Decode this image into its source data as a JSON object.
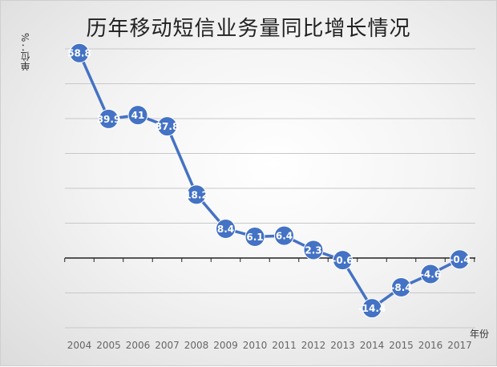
{
  "chart_data": {
    "type": "line",
    "title": "历年移动短信业务量同比增长情况",
    "ylabel": "单位：%",
    "xlabel": "年份",
    "categories": [
      "2004",
      "2005",
      "2006",
      "2007",
      "2008",
      "2009",
      "2010",
      "2011",
      "2012",
      "2013",
      "2014",
      "2015",
      "2016",
      "2017"
    ],
    "values": [
      58.8,
      39.9,
      41,
      37.8,
      18.2,
      8.4,
      6.1,
      6.4,
      2.3,
      -0.6,
      -14.4,
      -8.4,
      -4.6,
      -0.4
    ],
    "data_labels": [
      "58.8",
      "39.9",
      "41",
      "37.8",
      "18.2",
      "8.4",
      "6.1",
      "6.4",
      "2.3",
      "-0.6",
      "-14.4",
      "-8.4",
      "-4.6",
      "-0.4"
    ],
    "ylim": [
      -20,
      60
    ],
    "grid": true,
    "color": "#4472C4"
  }
}
